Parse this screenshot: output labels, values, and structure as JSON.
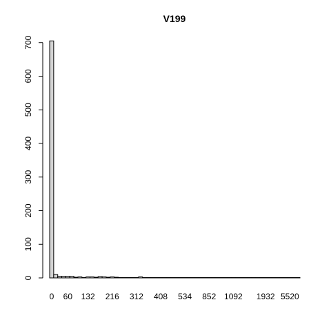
{
  "chart_data": {
    "type": "bar",
    "title": "V199",
    "categories": [
      "0",
      null,
      null,
      null,
      "60",
      null,
      null,
      null,
      null,
      "132",
      null,
      null,
      null,
      null,
      null,
      "216",
      null,
      null,
      null,
      null,
      null,
      "312",
      null,
      null,
      null,
      null,
      null,
      "408",
      null,
      null,
      null,
      null,
      null,
      "534",
      null,
      null,
      null,
      null,
      null,
      "852",
      null,
      null,
      null,
      null,
      null,
      "1092",
      null,
      null,
      null,
      null,
      null,
      null,
      null,
      "1932",
      null,
      null,
      null,
      null,
      null,
      "5520",
      null,
      null
    ],
    "values": [
      705,
      10,
      5,
      5,
      5,
      5,
      2,
      3,
      1,
      3,
      3,
      2,
      4,
      3,
      2,
      3,
      2,
      1,
      1,
      1,
      1,
      1,
      3,
      1,
      1,
      1,
      1,
      1,
      1,
      1,
      1,
      1,
      1,
      1,
      1,
      1,
      1,
      1,
      1,
      1,
      1,
      1,
      1,
      1,
      1,
      1,
      1,
      1,
      1,
      1,
      1,
      1,
      1,
      1,
      1,
      1,
      1,
      1,
      1,
      1,
      1,
      1
    ],
    "color": "#d3d3d3",
    "ylim": [
      0,
      720
    ],
    "yticks": [
      0,
      100,
      200,
      300,
      400,
      500,
      600,
      700
    ]
  }
}
